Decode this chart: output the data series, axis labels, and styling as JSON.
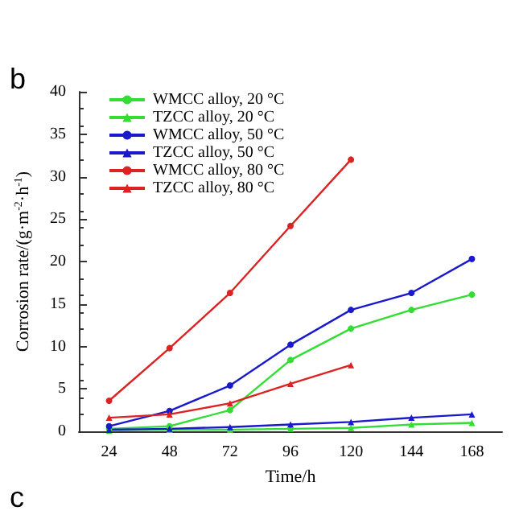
{
  "chart_data": {
    "type": "line",
    "xlabel": "Time/h",
    "ylabel": "Corrosion rate/(g·m$^{-2}$·h$^{-1}$)",
    "categories": [
      "24",
      "48",
      "72",
      "96",
      "120",
      "144",
      "168"
    ],
    "ylim": [
      0,
      40
    ],
    "yticks": [
      0,
      5,
      10,
      15,
      20,
      25,
      30,
      35,
      40
    ],
    "grid": false,
    "legend": "top left",
    "annotations": [
      "b",
      "c"
    ],
    "series": [
      {
        "name": "WMCC alloy, 20 °C",
        "color": "#33dd33",
        "marker": "circle",
        "values": [
          0.3,
          0.6,
          2.5,
          8.4,
          12.1,
          14.3,
          16.1
        ]
      },
      {
        "name": "TZCC alloy, 20 °C",
        "color": "#33dd33",
        "marker": "triangle",
        "values": [
          0.1,
          0.2,
          0.2,
          0.3,
          0.4,
          0.8,
          1.0
        ]
      },
      {
        "name": "WMCC alloy, 50 °C",
        "color": "#1a1acc",
        "marker": "circle",
        "values": [
          0.6,
          2.4,
          5.4,
          10.2,
          14.3,
          16.3,
          20.3
        ]
      },
      {
        "name": "TZCC alloy, 50 °C",
        "color": "#1a1acc",
        "marker": "triangle",
        "values": [
          0.2,
          0.3,
          0.5,
          0.8,
          1.1,
          1.6,
          2.0
        ]
      },
      {
        "name": "WMCC alloy, 80 °C",
        "color": "#dd2222",
        "marker": "circle",
        "values": [
          3.6,
          9.8,
          16.3,
          24.2,
          32.0,
          null,
          null
        ]
      },
      {
        "name": "TZCC alloy, 80 °C",
        "color": "#dd2222",
        "marker": "triangle",
        "values": [
          1.6,
          2.0,
          3.3,
          5.6,
          7.8,
          null,
          null
        ]
      }
    ]
  }
}
